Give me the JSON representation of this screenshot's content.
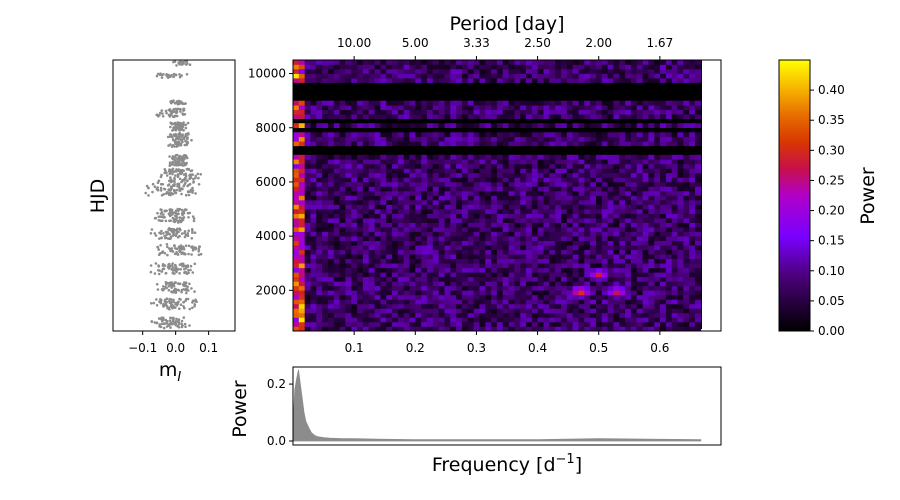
{
  "chart_data": [
    {
      "type": "scatter",
      "panel": "light-curve",
      "xlabel": "m",
      "xlabel_sub": "I",
      "ylabel": "HJD",
      "xticks": [
        "−0.1",
        "0.0",
        "0.1"
      ],
      "xtick_values": [
        -0.1,
        0.0,
        0.1
      ],
      "xlim": [
        -0.19,
        0.18
      ],
      "ylim": [
        500,
        10500
      ],
      "color": "#8c8c8c",
      "bands": [
        {
          "hjd": [
            10300,
            10450
          ],
          "mag": [
            -0.02,
            0.06
          ]
        },
        {
          "hjd": [
            9850,
            10000
          ],
          "mag": [
            -0.1,
            0.05
          ]
        },
        {
          "hjd": [
            8850,
            9000
          ],
          "mag": [
            -0.02,
            0.04
          ]
        },
        {
          "hjd": [
            8400,
            8700
          ],
          "mag": [
            -0.07,
            0.05
          ]
        },
        {
          "hjd": [
            7900,
            8200
          ],
          "mag": [
            -0.02,
            0.04
          ]
        },
        {
          "hjd": [
            7300,
            7800
          ],
          "mag": [
            -0.03,
            0.05
          ]
        },
        {
          "hjd": [
            6600,
            7000
          ],
          "mag": [
            -0.02,
            0.04
          ]
        },
        {
          "hjd": [
            6000,
            6500
          ],
          "mag": [
            -0.06,
            0.09
          ]
        },
        {
          "hjd": [
            5500,
            6000
          ],
          "mag": [
            -0.1,
            0.08
          ]
        },
        {
          "hjd": [
            4500,
            5000
          ],
          "mag": [
            -0.07,
            0.07
          ]
        },
        {
          "hjd": [
            3900,
            4300
          ],
          "mag": [
            -0.08,
            0.07
          ]
        },
        {
          "hjd": [
            3300,
            3700
          ],
          "mag": [
            -0.07,
            0.09
          ]
        },
        {
          "hjd": [
            2600,
            3000
          ],
          "mag": [
            -0.08,
            0.07
          ]
        },
        {
          "hjd": [
            1900,
            2300
          ],
          "mag": [
            -0.07,
            0.06
          ]
        },
        {
          "hjd": [
            1300,
            1700
          ],
          "mag": [
            -0.09,
            0.07
          ]
        },
        {
          "hjd": [
            600,
            1000
          ],
          "mag": [
            -0.08,
            0.05
          ]
        }
      ]
    },
    {
      "type": "heatmap",
      "panel": "time-frequency",
      "title": "Period [day]",
      "xlim": [
        0.0,
        0.7
      ],
      "ylim": [
        500,
        10500
      ],
      "data_xlim": [
        0.0,
        0.667
      ],
      "xticks": [
        "0.1",
        "0.2",
        "0.3",
        "0.4",
        "0.5",
        "0.6"
      ],
      "xtick_values": [
        0.1,
        0.2,
        0.3,
        0.4,
        0.5,
        0.6
      ],
      "yticks": [
        "2000",
        "4000",
        "6000",
        "8000",
        "10000"
      ],
      "ytick_values": [
        2000,
        4000,
        6000,
        8000,
        10000
      ],
      "period_ticks": [
        "10.00",
        "5.00",
        "3.33",
        "2.50",
        "2.00",
        "1.67"
      ],
      "period_tick_freqs": [
        0.1,
        0.2,
        0.3,
        0.4,
        0.5,
        0.6
      ],
      "colormap": "gnuplot",
      "gaps_hjd": [
        [
          9000,
          9700
        ],
        [
          6950,
          7350
        ],
        [
          7900,
          7950
        ],
        [
          8200,
          8400
        ]
      ],
      "hot_spots": [
        {
          "freq": 0.5,
          "hjd": 2600,
          "power": 0.3
        },
        {
          "freq": 0.47,
          "hjd": 1950,
          "power": 0.35
        },
        {
          "freq": 0.53,
          "hjd": 1950,
          "power": 0.3
        },
        {
          "freq": 0.005,
          "hjd": 10300,
          "power": 0.44
        },
        {
          "freq": 0.005,
          "hjd": 5100,
          "power": 0.4
        },
        {
          "freq": 0.005,
          "hjd": 2500,
          "power": 0.35
        }
      ]
    },
    {
      "type": "colorbar",
      "label": "Power",
      "range": [
        0.0,
        0.45
      ],
      "ticks": [
        "0.00",
        "0.05",
        "0.10",
        "0.15",
        "0.20",
        "0.25",
        "0.30",
        "0.35",
        "0.40"
      ],
      "tick_values": [
        0.0,
        0.05,
        0.1,
        0.15,
        0.2,
        0.25,
        0.3,
        0.35,
        0.4
      ]
    },
    {
      "type": "area",
      "panel": "periodogram",
      "xlabel": "Frequency [d",
      "xlabel_sup": "−1",
      "xlabel_end": "]",
      "ylabel": "Power",
      "xlim": [
        0.0,
        0.7
      ],
      "ylim": [
        0.0,
        0.26
      ],
      "yticks": [
        "0.0",
        "0.2"
      ],
      "ytick_values": [
        0.0,
        0.2
      ],
      "color": "#8c8c8c",
      "x": [
        0.0,
        0.003,
        0.006,
        0.009,
        0.012,
        0.015,
        0.018,
        0.021,
        0.025,
        0.03,
        0.035,
        0.04,
        0.05,
        0.06,
        0.08,
        0.1,
        0.15,
        0.2,
        0.3,
        0.4,
        0.5,
        0.6,
        0.667
      ],
      "y": [
        0.05,
        0.18,
        0.22,
        0.25,
        0.2,
        0.15,
        0.1,
        0.07,
        0.05,
        0.03,
        0.02,
        0.015,
        0.012,
        0.01,
        0.008,
        0.008,
        0.006,
        0.005,
        0.005,
        0.005,
        0.008,
        0.006,
        0.005
      ]
    }
  ]
}
